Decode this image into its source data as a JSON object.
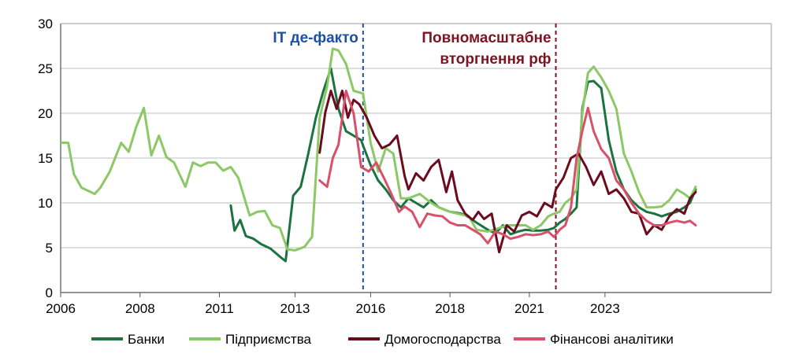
{
  "chart_data": {
    "type": "line",
    "title": "",
    "xlabel": "",
    "ylabel": "",
    "xlim": [
      2006.0,
      2024.8
    ],
    "ylim": [
      0,
      30
    ],
    "grid": "horizontal",
    "legend_position": "bottom",
    "y_ticks": [
      0,
      5,
      10,
      15,
      20,
      25,
      30
    ],
    "x_ticks": [
      {
        "label": "2006",
        "value": 2006.0
      },
      {
        "label": "2008",
        "value": 2008.1
      },
      {
        "label": "2011",
        "value": 2010.2
      },
      {
        "label": "2013",
        "value": 2012.2
      },
      {
        "label": "2016",
        "value": 2014.2
      },
      {
        "label": "2018",
        "value": 2016.3
      },
      {
        "label": "2021",
        "value": 2018.4
      },
      {
        "label": "2023",
        "value": 2020.4
      }
    ],
    "annotations": [
      {
        "label": "ІТ де-факто",
        "x": 2014.0,
        "color": "#1f4fa3"
      },
      {
        "label_lines": [
          "Повномасштабне",
          "вторгнення рф"
        ],
        "x": 2019.1,
        "color": "#7b1522"
      }
    ],
    "series": [
      {
        "name": "Банки",
        "color": "#1b7340",
        "x": [
          2010.5,
          2010.6,
          2010.75,
          2010.9,
          2011.1,
          2011.3,
          2011.55,
          2011.8,
          2011.95,
          2012.15,
          2012.35,
          2012.55,
          2012.75,
          2012.95,
          2013.15,
          2013.35,
          2013.55,
          2013.75,
          2013.95,
          2014.0,
          2014.2,
          2014.4,
          2014.6,
          2014.8,
          2015.0,
          2015.2,
          2015.4,
          2015.6,
          2015.8,
          2016.0,
          2016.3,
          2016.6,
          2016.8,
          2017.0,
          2017.3,
          2017.5,
          2017.7,
          2017.9,
          2018.1,
          2018.3,
          2018.5,
          2018.7,
          2018.9,
          2019.05,
          2019.2,
          2019.35,
          2019.5,
          2019.65,
          2019.8,
          2019.95,
          2020.1,
          2020.3,
          2020.5,
          2020.7,
          2020.9,
          2021.1,
          2021.3,
          2021.5,
          2021.7,
          2021.9,
          2022.1,
          2022.3,
          2022.5,
          2022.65,
          2022.8
        ],
        "values": [
          9.7,
          6.9,
          8.1,
          6.3,
          6.0,
          5.4,
          4.9,
          4.0,
          3.5,
          10.8,
          11.8,
          15.5,
          19.5,
          22.5,
          25.0,
          20.5,
          18.0,
          17.5,
          17.0,
          16.4,
          14.2,
          12.5,
          11.5,
          10.3,
          9.5,
          10.5,
          10.0,
          9.5,
          10.3,
          9.5,
          9.0,
          8.8,
          8.4,
          7.8,
          7.0,
          6.6,
          7.5,
          6.5,
          6.8,
          7.0,
          6.9,
          6.9,
          7.0,
          7.2,
          7.8,
          8.2,
          8.8,
          9.5,
          20.5,
          23.5,
          23.6,
          22.8,
          17.0,
          13.5,
          11.5,
          10.3,
          9.5,
          9.0,
          8.8,
          8.5,
          8.8,
          9.0,
          9.5,
          10.0,
          11.5
        ]
      },
      {
        "name": "Підприємства",
        "color": "#8cc866",
        "x": [
          2006.0,
          2006.2,
          2006.35,
          2006.55,
          2006.9,
          2007.05,
          2007.3,
          2007.6,
          2007.8,
          2008.0,
          2008.2,
          2008.4,
          2008.6,
          2008.8,
          2009.0,
          2009.3,
          2009.5,
          2009.7,
          2009.9,
          2010.1,
          2010.3,
          2010.5,
          2010.7,
          2011.0,
          2011.2,
          2011.4,
          2011.6,
          2011.8,
          2012.0,
          2012.2,
          2012.45,
          2012.65,
          2012.85,
          2013.05,
          2013.2,
          2013.35,
          2013.55,
          2013.75,
          2014.0,
          2014.2,
          2014.4,
          2014.6,
          2014.8,
          2015.0,
          2015.2,
          2015.5,
          2015.8,
          2016.0,
          2016.3,
          2016.5,
          2016.8,
          2017.0,
          2017.3,
          2017.6,
          2017.8,
          2018.0,
          2018.3,
          2018.5,
          2018.7,
          2018.9,
          2019.05,
          2019.2,
          2019.35,
          2019.5,
          2019.65,
          2019.8,
          2019.95,
          2020.1,
          2020.3,
          2020.5,
          2020.7,
          2020.9,
          2021.1,
          2021.3,
          2021.5,
          2021.7,
          2021.9,
          2022.1,
          2022.3,
          2022.5,
          2022.65,
          2022.8
        ],
        "values": [
          16.7,
          16.7,
          13.2,
          11.7,
          11.0,
          11.7,
          13.5,
          16.7,
          15.7,
          18.5,
          20.6,
          15.3,
          17.5,
          15.1,
          14.5,
          11.8,
          14.5,
          14.1,
          14.5,
          14.5,
          13.6,
          14.0,
          12.8,
          8.6,
          9.0,
          9.1,
          7.5,
          7.2,
          4.8,
          4.7,
          5.1,
          6.2,
          19.5,
          23.0,
          27.2,
          27.0,
          25.5,
          22.5,
          22.2,
          16.7,
          13.5,
          16.1,
          15.5,
          10.5,
          10.5,
          11.0,
          10.0,
          9.5,
          9.0,
          8.8,
          8.5,
          7.0,
          6.8,
          7.2,
          7.5,
          7.5,
          7.5,
          7.0,
          7.5,
          8.5,
          8.8,
          9.0,
          10.0,
          10.5,
          11.5,
          20.0,
          24.5,
          25.2,
          24.0,
          22.5,
          20.5,
          15.5,
          13.5,
          11.2,
          9.5,
          9.5,
          9.6,
          10.3,
          11.5,
          11.0,
          10.5,
          11.8
        ]
      },
      {
        "name": "Домогосподарства",
        "color": "#6b0c1e",
        "x": [
          2012.85,
          2013.0,
          2013.15,
          2013.3,
          2013.45,
          2013.6,
          2013.75,
          2013.9,
          2014.1,
          2014.3,
          2014.5,
          2014.7,
          2014.9,
          2015.1,
          2015.2,
          2015.4,
          2015.6,
          2015.8,
          2016.0,
          2016.2,
          2016.35,
          2016.5,
          2016.7,
          2016.9,
          2017.05,
          2017.2,
          2017.4,
          2017.6,
          2017.8,
          2018.0,
          2018.2,
          2018.4,
          2018.6,
          2018.8,
          2019.0,
          2019.1,
          2019.3,
          2019.5,
          2019.7,
          2019.9,
          2020.1,
          2020.3,
          2020.5,
          2020.7,
          2020.9,
          2021.1,
          2021.3,
          2021.5,
          2021.7,
          2021.9,
          2022.1,
          2022.3,
          2022.5,
          2022.65,
          2022.8
        ],
        "values": [
          15.6,
          20.1,
          22.5,
          20.5,
          22.5,
          19.5,
          21.5,
          21.0,
          19.5,
          17.5,
          16.1,
          16.5,
          17.5,
          13.0,
          11.5,
          13.3,
          12.5,
          14.0,
          14.8,
          11.2,
          13.5,
          10.3,
          8.8,
          8.1,
          9.0,
          8.2,
          8.8,
          4.5,
          7.5,
          6.8,
          8.6,
          9.0,
          8.5,
          10.0,
          9.5,
          11.5,
          12.8,
          15.0,
          15.5,
          14.0,
          12.0,
          13.5,
          11.0,
          11.5,
          10.5,
          9.0,
          8.8,
          6.5,
          7.5,
          7.0,
          8.5,
          9.3,
          8.8,
          10.5,
          11.2
        ]
      },
      {
        "name": "Фінансові аналітики",
        "color": "#d8506a",
        "x": [
          2012.85,
          2013.05,
          2013.2,
          2013.35,
          2013.55,
          2013.75,
          2013.95,
          2014.15,
          2014.35,
          2014.55,
          2014.75,
          2014.95,
          2015.1,
          2015.3,
          2015.5,
          2015.7,
          2015.9,
          2016.1,
          2016.3,
          2016.5,
          2016.7,
          2016.9,
          2017.1,
          2017.3,
          2017.5,
          2017.7,
          2017.9,
          2018.1,
          2018.3,
          2018.5,
          2018.7,
          2018.9,
          2019.05,
          2019.2,
          2019.35,
          2019.5,
          2019.65,
          2019.8,
          2019.95,
          2020.1,
          2020.3,
          2020.5,
          2020.7,
          2020.9,
          2021.1,
          2021.3,
          2021.5,
          2021.7,
          2021.9,
          2022.1,
          2022.3,
          2022.5,
          2022.65,
          2022.8
        ],
        "values": [
          12.5,
          11.8,
          15.0,
          16.5,
          22.5,
          20.0,
          14.0,
          13.5,
          14.5,
          12.8,
          11.0,
          9.0,
          9.6,
          9.0,
          7.3,
          8.8,
          8.6,
          8.5,
          7.8,
          7.5,
          7.5,
          7.0,
          6.5,
          5.5,
          6.8,
          6.5,
          6.0,
          6.2,
          6.5,
          6.4,
          6.5,
          6.8,
          6.2,
          7.0,
          7.5,
          9.5,
          15.0,
          18.0,
          20.6,
          18.0,
          16.0,
          15.0,
          12.5,
          11.5,
          10.0,
          8.8,
          8.0,
          7.5,
          7.5,
          7.8,
          8.0,
          7.8,
          8.0,
          7.5
        ]
      }
    ]
  }
}
